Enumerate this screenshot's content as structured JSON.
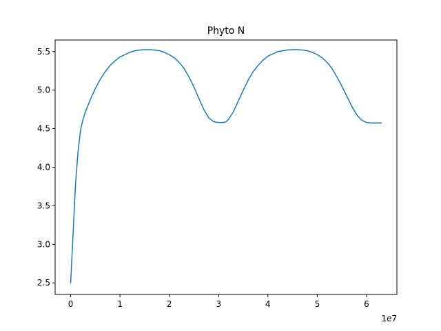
{
  "chart_data": {
    "type": "line",
    "title": "Phyto N",
    "xlabel": "",
    "ylabel": "",
    "x_offset_label": "1e7",
    "xlim": [
      -3150000,
      66150000
    ],
    "ylim": [
      2.35,
      5.65
    ],
    "x_ticks": [
      0,
      10000000,
      20000000,
      30000000,
      40000000,
      50000000,
      60000000
    ],
    "x_tick_labels": [
      "0",
      "1",
      "2",
      "3",
      "4",
      "5",
      "6"
    ],
    "y_ticks": [
      2.5,
      3.0,
      3.5,
      4.0,
      4.5,
      5.0,
      5.5
    ],
    "y_tick_labels": [
      "2.5",
      "3.0",
      "3.5",
      "4.0",
      "4.5",
      "5.0",
      "5.5"
    ],
    "grid": false,
    "legend": "none",
    "series": [
      {
        "color": "#1f77b4",
        "x": [
          0,
          500000,
          1000000,
          1500000,
          2000000,
          2500000,
          3000000,
          4000000,
          5000000,
          6000000,
          7000000,
          8000000,
          9000000,
          10000000,
          11000000,
          12000000,
          13000000,
          14000000,
          15000000,
          16000000,
          17000000,
          18000000,
          19000000,
          20000000,
          21000000,
          22000000,
          23000000,
          24000000,
          25000000,
          26000000,
          27000000,
          28000000,
          29000000,
          30000000,
          31000000,
          31500000,
          32000000,
          33000000,
          34000000,
          35000000,
          36000000,
          37000000,
          38000000,
          39000000,
          40000000,
          41000000,
          42000000,
          43000000,
          44000000,
          45000000,
          46000000,
          47000000,
          48000000,
          49000000,
          50000000,
          51000000,
          52000000,
          53000000,
          54000000,
          55000000,
          56000000,
          57000000,
          58000000,
          59000000,
          60000000,
          61000000,
          62000000,
          63000000
        ],
        "y": [
          2.5,
          3.15,
          3.8,
          4.2,
          4.48,
          4.62,
          4.72,
          4.88,
          5.02,
          5.14,
          5.24,
          5.32,
          5.38,
          5.43,
          5.46,
          5.49,
          5.51,
          5.52,
          5.525,
          5.525,
          5.52,
          5.51,
          5.49,
          5.46,
          5.42,
          5.36,
          5.28,
          5.17,
          5.04,
          4.89,
          4.75,
          4.64,
          4.59,
          4.58,
          4.58,
          4.59,
          4.62,
          4.72,
          4.86,
          5.0,
          5.13,
          5.24,
          5.32,
          5.39,
          5.44,
          5.47,
          5.5,
          5.51,
          5.52,
          5.525,
          5.525,
          5.52,
          5.51,
          5.49,
          5.46,
          5.42,
          5.36,
          5.28,
          5.17,
          5.05,
          4.92,
          4.79,
          4.68,
          4.61,
          4.58,
          4.575,
          4.575,
          4.575
        ]
      }
    ]
  }
}
